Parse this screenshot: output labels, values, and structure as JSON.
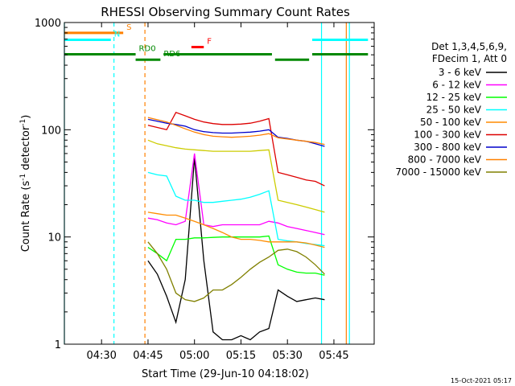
{
  "chart_data": {
    "type": "line",
    "title": "RHESSI Observing Summary Count Rates",
    "xlabel": "Start Time (29-Jun-10 04:18:02)",
    "ylabel_main": "Count Rate (s",
    "ylabel_sup1": "-1",
    "ylabel_mid": " detector",
    "ylabel_sup2": "-1",
    "ylabel_end": ")",
    "footer": "15-Oct-2021 05:17",
    "y_scale": "log",
    "xlim": [
      "04:18",
      "05:58"
    ],
    "ylim": [
      1,
      1000
    ],
    "x_ticks": [
      {
        "label": "04:30",
        "x": "04:30"
      },
      {
        "label": "04:45",
        "x": "04:45"
      },
      {
        "label": "05:00",
        "x": "05:00"
      },
      {
        "label": "05:15",
        "x": "05:15"
      },
      {
        "label": "05:30",
        "x": "05:30"
      },
      {
        "label": "05:45",
        "x": "05:45"
      }
    ],
    "y_ticks": [
      {
        "label": "1",
        "y": 1
      },
      {
        "label": "10",
        "y": 10
      },
      {
        "label": "100",
        "y": 100
      },
      {
        "label": "1000",
        "y": 1000
      }
    ],
    "legend_header": [
      "Det 1,3,4,5,6,9,",
      "FDecim 1, Att 0"
    ],
    "series": [
      {
        "name": "3 - 6 keV",
        "color": "#000000",
        "x": [
          "04:45",
          "04:48",
          "04:51",
          "04:54",
          "04:57",
          "05:00",
          "05:03",
          "05:06",
          "05:09",
          "05:12",
          "05:15",
          "05:18",
          "05:21",
          "05:24",
          "05:27",
          "05:30",
          "05:33",
          "05:36",
          "05:39",
          "05:42"
        ],
        "y": [
          6.0,
          4.5,
          2.8,
          1.6,
          4.0,
          55,
          6.0,
          1.3,
          1.1,
          1.1,
          1.2,
          1.1,
          1.3,
          1.4,
          3.2,
          2.8,
          2.5,
          2.6,
          2.7,
          2.6
        ]
      },
      {
        "name": "6 - 12 keV",
        "color": "#ff00ff",
        "x": [
          "04:45",
          "04:48",
          "04:51",
          "04:54",
          "04:57",
          "05:00",
          "05:03",
          "05:06",
          "05:09",
          "05:12",
          "05:15",
          "05:18",
          "05:21",
          "05:24",
          "05:27",
          "05:30",
          "05:33",
          "05:36",
          "05:39",
          "05:42"
        ],
        "y": [
          15,
          14.5,
          13.5,
          13,
          14,
          60,
          13,
          12.5,
          13,
          13,
          13,
          13,
          13,
          14,
          13.5,
          12.5,
          12,
          11.5,
          11,
          10.5
        ]
      },
      {
        "name": "12 - 25 keV",
        "color": "#00ff00",
        "x": [
          "04:45",
          "04:48",
          "04:51",
          "04:54",
          "04:57",
          "05:00",
          "05:03",
          "05:06",
          "05:09",
          "05:12",
          "05:15",
          "05:18",
          "05:21",
          "05:24",
          "05:27",
          "05:30",
          "05:33",
          "05:36",
          "05:39",
          "05:42"
        ],
        "y": [
          8,
          7,
          6,
          9.5,
          9.5,
          9.8,
          9.8,
          9.9,
          10,
          10,
          10,
          10,
          10,
          10.2,
          5.5,
          5,
          4.7,
          4.6,
          4.6,
          4.4
        ]
      },
      {
        "name": "25 - 50 keV",
        "color": "#00ffff",
        "x": [
          "04:45",
          "04:48",
          "04:51",
          "04:54",
          "04:57",
          "05:00",
          "05:03",
          "05:06",
          "05:09",
          "05:12",
          "05:15",
          "05:18",
          "05:21",
          "05:24",
          "05:27",
          "05:30",
          "05:33",
          "05:36",
          "05:39",
          "05:42"
        ],
        "y": [
          40,
          38,
          37,
          24,
          22,
          22,
          21,
          21,
          21.5,
          22,
          22.5,
          23.5,
          25,
          27,
          9.5,
          9.2,
          9,
          8.7,
          8.5,
          8.3
        ]
      },
      {
        "name": "50 - 100 keV",
        "color": "#ff8c00",
        "x": [
          "04:45",
          "04:48",
          "04:51",
          "04:54",
          "04:57",
          "05:00",
          "05:03",
          "05:06",
          "05:09",
          "05:12",
          "05:15",
          "05:18",
          "05:21",
          "05:24",
          "05:27",
          "05:30",
          "05:33",
          "05:36",
          "05:39",
          "05:42"
        ],
        "y": [
          17,
          16.5,
          16,
          16,
          15,
          14,
          13,
          12,
          11,
          10,
          9.5,
          9.5,
          9.3,
          9,
          9,
          9,
          9,
          8.8,
          8.4,
          8
        ]
      },
      {
        "name": "100 - 300 keV",
        "color": "#dd0000",
        "x": [
          "04:45",
          "04:48",
          "04:51",
          "04:54",
          "04:57",
          "05:00",
          "05:03",
          "05:06",
          "05:09",
          "05:12",
          "05:15",
          "05:18",
          "05:21",
          "05:24",
          "05:27",
          "05:30",
          "05:33",
          "05:36",
          "05:39",
          "05:42"
        ],
        "y": [
          110,
          105,
          100,
          145,
          135,
          125,
          118,
          114,
          112,
          112,
          113,
          115,
          120,
          127,
          40,
          38,
          36,
          34,
          33,
          30
        ]
      },
      {
        "name": "300 - 800 keV",
        "color": "#0000cc",
        "x": [
          "04:45",
          "04:48",
          "04:51",
          "04:54",
          "04:57",
          "05:00",
          "05:03",
          "05:06",
          "05:09",
          "05:12",
          "05:15",
          "05:18",
          "05:21",
          "05:24",
          "05:27",
          "05:30",
          "05:33",
          "05:36",
          "05:39",
          "05:42"
        ],
        "y": [
          125,
          120,
          115,
          112,
          108,
          100,
          96,
          94,
          93,
          93,
          94,
          95,
          97,
          100,
          85,
          83,
          80,
          78,
          74,
          70
        ]
      },
      {
        "name": "800 - 7000 keV",
        "color": "#ff8000",
        "x": [
          "04:45",
          "04:48",
          "04:51",
          "04:54",
          "04:57",
          "05:00",
          "05:03",
          "05:06",
          "05:09",
          "05:12",
          "05:15",
          "05:18",
          "05:21",
          "05:24",
          "05:27",
          "05:30",
          "05:33",
          "05:36",
          "05:39",
          "05:42"
        ],
        "y": [
          130,
          124,
          118,
          110,
          102,
          95,
          90,
          87,
          86,
          85,
          86,
          87,
          89,
          92,
          84,
          82,
          80,
          78,
          76,
          73
        ]
      },
      {
        "name": "7000 - 15000 keV",
        "color": "#808000",
        "x": [
          "04:45",
          "04:48",
          "04:51",
          "04:54",
          "04:57",
          "05:00",
          "05:03",
          "05:06",
          "05:09",
          "05:12",
          "05:15",
          "05:18",
          "05:21",
          "05:24",
          "05:27",
          "05:30",
          "05:33",
          "05:36",
          "05:39",
          "05:42"
        ],
        "y": [
          9,
          7,
          5,
          3,
          2.6,
          2.5,
          2.7,
          3.2,
          3.2,
          3.6,
          4.2,
          5,
          5.8,
          6.5,
          7.5,
          7.7,
          7.3,
          6.5,
          5.5,
          4.5
        ]
      },
      {
        "name": "",
        "color": "#cccc00",
        "x": [
          "04:45",
          "04:48",
          "04:51",
          "04:54",
          "04:57",
          "05:00",
          "05:03",
          "05:06",
          "05:09",
          "05:12",
          "05:15",
          "05:18",
          "05:21",
          "05:24",
          "05:27",
          "05:30",
          "05:33",
          "05:36",
          "05:39",
          "05:42"
        ],
        "y": [
          80,
          74,
          71,
          68,
          66,
          65,
          64,
          63,
          63,
          63,
          63,
          63,
          64,
          65,
          22,
          21,
          20,
          19,
          18,
          17
        ]
      }
    ],
    "status_bars": [
      {
        "label": "S",
        "color": "#ff8000",
        "y": 800,
        "ranges": [
          [
            "04:18",
            "04:37"
          ]
        ]
      },
      {
        "label": "N",
        "color": "#00ffff",
        "y": 690,
        "ranges": [
          [
            "04:18",
            "04:33"
          ],
          [
            "05:38",
            "05:56"
          ]
        ]
      },
      {
        "label": "F",
        "color": "#ff0000",
        "y": 590,
        "ranges": [
          [
            "04:59",
            "05:03"
          ]
        ]
      },
      {
        "label": "RD0",
        "color": "#008800",
        "y": 505,
        "ranges": [
          [
            "04:18",
            "04:41"
          ],
          [
            "04:50",
            "05:25"
          ],
          [
            "05:38",
            "05:56"
          ]
        ]
      },
      {
        "label": "RD6",
        "color": "#008800",
        "y": 450,
        "ranges": [
          [
            "04:41",
            "04:49"
          ],
          [
            "05:26",
            "05:37"
          ]
        ]
      }
    ],
    "vlines": [
      {
        "x": "04:18",
        "color": "#00ffff",
        "style": "solid"
      },
      {
        "x": "04:34",
        "color": "#00ffff",
        "style": "dashed"
      },
      {
        "x": "04:44",
        "color": "#ff8000",
        "style": "dashed"
      },
      {
        "x": "05:41",
        "color": "#00ffff",
        "style": "solid"
      },
      {
        "x": "05:49",
        "color": "#ff8000",
        "style": "solid"
      },
      {
        "x": "05:50",
        "color": "#00ffff",
        "style": "solid"
      }
    ],
    "grid": false,
    "legend_position": "right"
  }
}
